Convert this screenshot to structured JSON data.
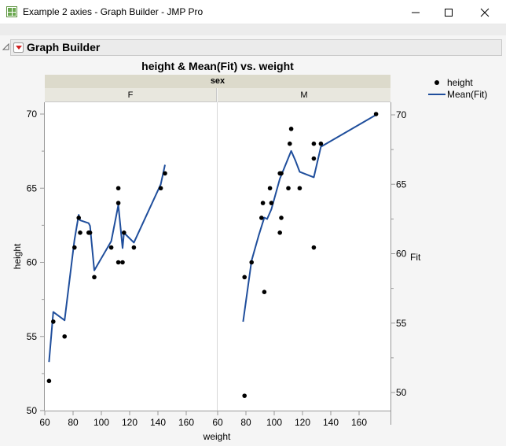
{
  "window": {
    "title": "Example 2 axies - Graph Builder - JMP Pro",
    "minimize_icon": "minimize-icon",
    "maximize_icon": "maximize-icon",
    "close_icon": "close-icon",
    "menu_dots": "• • •"
  },
  "report": {
    "outline_title": "Graph Builder",
    "disclosure_icon": "triangle-disclosure-icon",
    "red_triangle_icon": "red-triangle-menu-icon"
  },
  "legend": {
    "items": [
      {
        "label": "height",
        "type": "marker",
        "color": "#000000"
      },
      {
        "label": "Mean(Fit)",
        "type": "line",
        "color": "#1f4e9c"
      }
    ]
  },
  "chart_data": {
    "type": "scatter",
    "title": "height & Mean(Fit) vs. weight",
    "group_by": "sex",
    "panels": [
      "F",
      "M"
    ],
    "xlabel": "weight",
    "ylabel": "height",
    "y2label": "Fit",
    "xlim": [
      60,
      180
    ],
    "xticks": [
      60,
      80,
      100,
      120,
      140,
      160
    ],
    "ylim": [
      50,
      70
    ],
    "yticks": [
      50,
      55,
      60,
      65,
      70
    ],
    "y2lim": [
      48.7,
      70
    ],
    "y2ticks": [
      50,
      55,
      60,
      65,
      70
    ],
    "line_color": "#1f4e9c",
    "marker_color": "#000000",
    "series": [
      {
        "name": "height",
        "kind": "points",
        "axis": "left",
        "F": [
          [
            63,
            52
          ],
          [
            66,
            56
          ],
          [
            74,
            55
          ],
          [
            81,
            61
          ],
          [
            84,
            63
          ],
          [
            85,
            62
          ],
          [
            91,
            62
          ],
          [
            92,
            62
          ],
          [
            95,
            59
          ],
          [
            107,
            61
          ],
          [
            112,
            65
          ],
          [
            112,
            64
          ],
          [
            112,
            60
          ],
          [
            115,
            60
          ],
          [
            116,
            62
          ],
          [
            123,
            61
          ],
          [
            142,
            65
          ],
          [
            145,
            66
          ]
        ],
        "M": [
          [
            79,
            59
          ],
          [
            79,
            51
          ],
          [
            84,
            60
          ],
          [
            91,
            63
          ],
          [
            92,
            64
          ],
          [
            93,
            58
          ],
          [
            97,
            65
          ],
          [
            98,
            64
          ],
          [
            104,
            62
          ],
          [
            104,
            66
          ],
          [
            105,
            63
          ],
          [
            105,
            66
          ],
          [
            110,
            65
          ],
          [
            111,
            68
          ],
          [
            112,
            69
          ],
          [
            118,
            65
          ],
          [
            128,
            61
          ],
          [
            128,
            67
          ],
          [
            128,
            68
          ],
          [
            133,
            68
          ],
          [
            172,
            70
          ]
        ]
      },
      {
        "name": "Mean(Fit)",
        "kind": "line",
        "axis": "right",
        "F": [
          [
            63,
            52.2
          ],
          [
            66,
            55.8
          ],
          [
            74,
            55.2
          ],
          [
            81,
            61.0
          ],
          [
            84,
            62.8
          ],
          [
            85,
            62.4
          ],
          [
            91,
            62.2
          ],
          [
            92,
            62.0
          ],
          [
            95,
            58.8
          ],
          [
            107,
            60.9
          ],
          [
            112,
            63.5
          ],
          [
            115,
            60.4
          ],
          [
            116,
            61.5
          ],
          [
            123,
            60.8
          ],
          [
            142,
            65.0
          ],
          [
            145,
            66.4
          ]
        ],
        "M": [
          [
            78,
            55.1
          ],
          [
            84,
            59.5
          ],
          [
            89,
            61.3
          ],
          [
            93,
            62.6
          ],
          [
            95,
            62.5
          ],
          [
            98,
            63.2
          ],
          [
            104,
            65.4
          ],
          [
            112,
            67.4
          ],
          [
            115,
            66.7
          ],
          [
            118,
            65.9
          ],
          [
            128,
            65.5
          ],
          [
            133,
            67.7
          ],
          [
            172,
            70.0
          ]
        ]
      }
    ],
    "grid": false,
    "legend_position": "right-top"
  }
}
